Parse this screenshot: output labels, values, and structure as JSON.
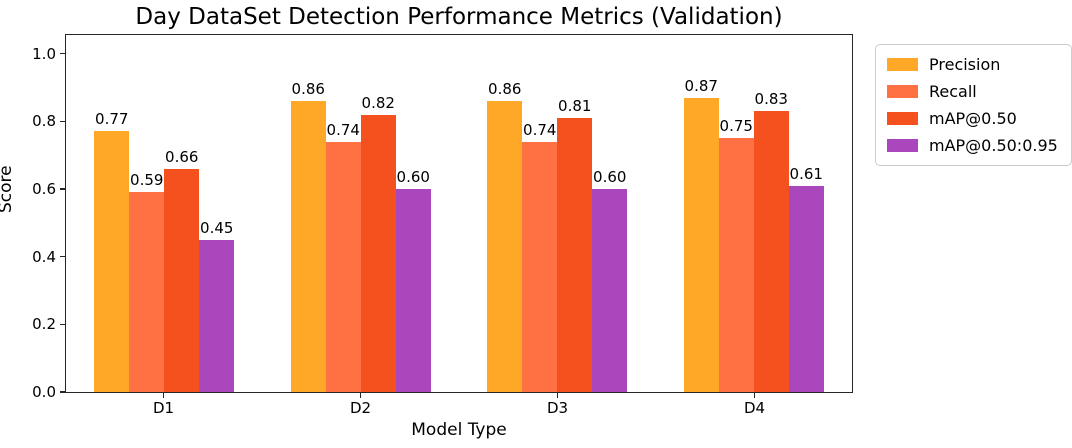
{
  "chart_data": {
    "type": "bar",
    "title": "Day DataSet Detection Performance Metrics (Validation)",
    "xlabel": "Model Type",
    "ylabel": "Score",
    "categories": [
      "D1",
      "D2",
      "D3",
      "D4"
    ],
    "series": [
      {
        "name": "Precision",
        "color": "#FFA726",
        "values": [
          0.77,
          0.86,
          0.86,
          0.87
        ]
      },
      {
        "name": "Recall",
        "color": "#FF7043",
        "values": [
          0.59,
          0.74,
          0.74,
          0.75
        ]
      },
      {
        "name": "mAP@0.50",
        "color": "#F4511E",
        "values": [
          0.66,
          0.82,
          0.81,
          0.83
        ]
      },
      {
        "name": "mAP@0.50:0.95",
        "color": "#AB47BC",
        "values": [
          0.45,
          0.6,
          0.6,
          0.61
        ]
      }
    ],
    "ylim": [
      0,
      1.055
    ],
    "yticks": [
      0.0,
      0.2,
      0.4,
      0.6,
      0.8,
      1.0
    ],
    "grid": false,
    "legend_position": "outside-top-right",
    "value_labels": true,
    "value_label_decimals": 2,
    "spine_color": "#262626",
    "background_color": "#ffffff"
  }
}
